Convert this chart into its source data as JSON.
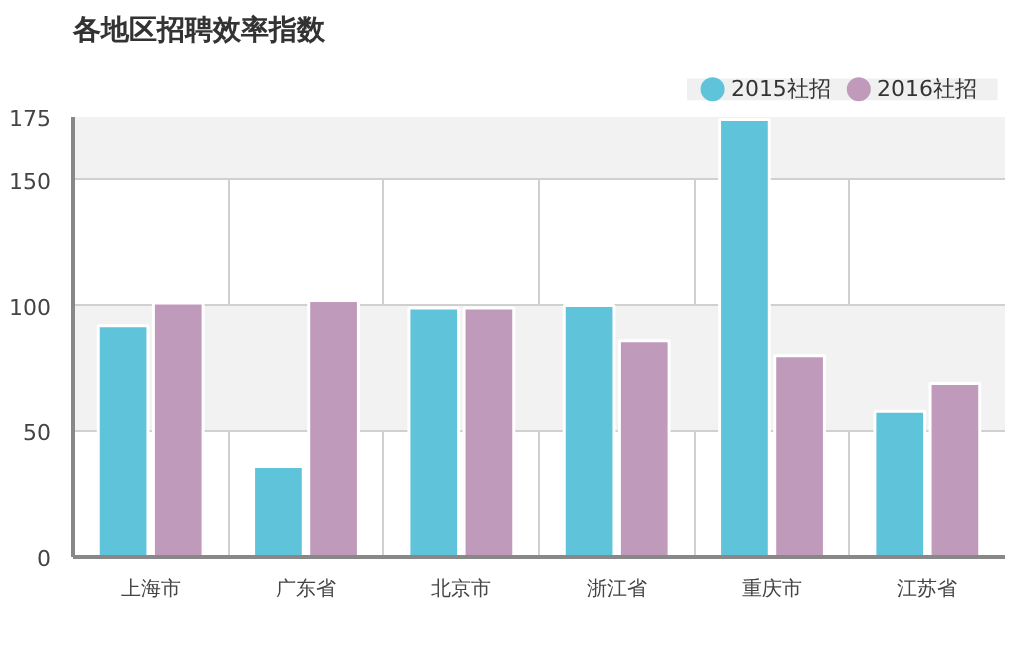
{
  "chart_data": {
    "type": "bar",
    "title": "各地区招聘效率指数",
    "categories": [
      "上海市",
      "广东省",
      "北京市",
      "浙江省",
      "重庆市",
      "江苏省"
    ],
    "series": [
      {
        "name": "2015社招",
        "color": "#5fc3da",
        "values": [
          92,
          36,
          99,
          100,
          174,
          58
        ]
      },
      {
        "name": "2016社招",
        "color": "#c09abb",
        "values": [
          101,
          102,
          99,
          86,
          80,
          69
        ]
      }
    ],
    "ylim": [
      0,
      175
    ],
    "yticks": [
      0,
      50,
      100,
      150,
      175
    ],
    "grid": true,
    "legend": "top right"
  }
}
